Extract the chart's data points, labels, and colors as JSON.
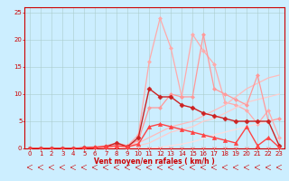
{
  "xlabel": "Vent moyen/en rafales ( km/h )",
  "xlabel_color": "#cc0000",
  "background_color": "#cceeff",
  "grid_color": "#aacccc",
  "xlim": [
    -0.5,
    23.5
  ],
  "ylim": [
    0,
    26
  ],
  "yticks": [
    0,
    5,
    10,
    15,
    20,
    25
  ],
  "xticks": [
    0,
    1,
    2,
    3,
    4,
    5,
    6,
    7,
    8,
    9,
    10,
    11,
    12,
    13,
    14,
    15,
    16,
    17,
    18,
    19,
    20,
    21,
    22,
    23
  ],
  "series": [
    {
      "x": [
        0,
        1,
        2,
        3,
        4,
        5,
        6,
        7,
        8,
        9,
        10,
        11,
        12,
        13,
        14,
        15,
        16,
        17,
        18,
        19,
        20,
        21,
        22,
        23
      ],
      "y": [
        0,
        0,
        0,
        0,
        0,
        0.1,
        0.2,
        0.3,
        0.5,
        0.5,
        2.5,
        16.0,
        24.0,
        18.5,
        9.5,
        21.0,
        18.0,
        15.5,
        8.5,
        8.0,
        7.0,
        4.5,
        7.0,
        2.0
      ],
      "color": "#ffaaaa",
      "lw": 0.9,
      "marker": "D",
      "ms": 2.0,
      "zorder": 2
    },
    {
      "x": [
        0,
        1,
        2,
        3,
        4,
        5,
        6,
        7,
        8,
        9,
        10,
        11,
        12,
        13,
        14,
        15,
        16,
        17,
        18,
        19,
        20,
        21,
        22,
        23
      ],
      "y": [
        0,
        0,
        0,
        0,
        0,
        0.2,
        0.3,
        0.5,
        1.0,
        0.5,
        1.5,
        7.5,
        7.5,
        10.0,
        9.5,
        9.5,
        21.0,
        11.0,
        10.0,
        9.0,
        8.0,
        13.5,
        5.0,
        5.5
      ],
      "color": "#ff9999",
      "lw": 0.9,
      "marker": "D",
      "ms": 2.0,
      "zorder": 3
    },
    {
      "x": [
        0,
        1,
        2,
        3,
        4,
        5,
        6,
        7,
        8,
        9,
        10,
        11,
        12,
        13,
        14,
        15,
        16,
        17,
        18,
        19,
        20,
        21,
        22,
        23
      ],
      "y": [
        0,
        0,
        0,
        0,
        0,
        0,
        0,
        0,
        0.5,
        0.5,
        1.0,
        2.0,
        3.0,
        4.0,
        4.5,
        5.0,
        6.0,
        7.0,
        8.0,
        9.5,
        11.0,
        12.0,
        13.0,
        13.5
      ],
      "color": "#ffbbbb",
      "lw": 0.9,
      "marker": null,
      "ms": 0,
      "zorder": 2
    },
    {
      "x": [
        0,
        1,
        2,
        3,
        4,
        5,
        6,
        7,
        8,
        9,
        10,
        11,
        12,
        13,
        14,
        15,
        16,
        17,
        18,
        19,
        20,
        21,
        22,
        23
      ],
      "y": [
        0,
        0,
        0,
        0,
        0,
        0,
        0,
        0,
        0.2,
        0.3,
        0.5,
        1.0,
        2.0,
        3.0,
        3.5,
        4.0,
        5.0,
        5.5,
        6.5,
        7.5,
        8.5,
        9.0,
        9.5,
        10.0
      ],
      "color": "#ffcccc",
      "lw": 0.9,
      "marker": null,
      "ms": 0,
      "zorder": 2
    },
    {
      "x": [
        0,
        1,
        2,
        3,
        4,
        5,
        6,
        7,
        8,
        9,
        10,
        11,
        12,
        13,
        14,
        15,
        16,
        17,
        18,
        19,
        20,
        21,
        22,
        23
      ],
      "y": [
        0,
        0,
        0,
        0,
        0,
        0,
        0,
        0,
        0,
        0,
        0,
        0,
        0.2,
        0.5,
        0.8,
        1.2,
        1.8,
        2.5,
        3.0,
        3.5,
        4.0,
        4.5,
        5.0,
        5.5
      ],
      "color": "#ffdddd",
      "lw": 0.9,
      "marker": null,
      "ms": 0,
      "zorder": 2
    },
    {
      "x": [
        0,
        1,
        2,
        3,
        4,
        5,
        6,
        7,
        8,
        9,
        10,
        11,
        12,
        13,
        14,
        15,
        16,
        17,
        18,
        19,
        20,
        21,
        22,
        23
      ],
      "y": [
        0,
        0,
        0,
        0,
        0,
        0.1,
        0.2,
        0.3,
        1.0,
        0.3,
        2.0,
        11.0,
        9.5,
        9.5,
        8.0,
        7.5,
        6.5,
        6.0,
        5.5,
        5.0,
        5.0,
        5.0,
        5.0,
        0.5
      ],
      "color": "#cc2222",
      "lw": 1.0,
      "marker": "D",
      "ms": 2.5,
      "zorder": 4
    },
    {
      "x": [
        0,
        1,
        2,
        3,
        4,
        5,
        6,
        7,
        8,
        9,
        10,
        11,
        12,
        13,
        14,
        15,
        16,
        17,
        18,
        19,
        20,
        21,
        22,
        23
      ],
      "y": [
        0,
        0,
        0,
        0,
        0,
        0.1,
        0.2,
        0.3,
        0.5,
        0.3,
        0.8,
        4.0,
        4.5,
        4.0,
        3.5,
        3.0,
        2.5,
        2.0,
        1.5,
        1.0,
        4.0,
        0.5,
        2.0,
        0.2
      ],
      "color": "#ff4444",
      "lw": 1.0,
      "marker": "^",
      "ms": 3,
      "zorder": 5
    },
    {
      "x": [
        0,
        1,
        2,
        3,
        4,
        5,
        6,
        7,
        8,
        9,
        10,
        11,
        12,
        13,
        14,
        15,
        16,
        17,
        18,
        19,
        20,
        21,
        22,
        23
      ],
      "y": [
        0,
        0,
        0,
        0,
        0,
        0,
        0,
        0,
        0,
        0,
        0,
        0,
        0,
        0,
        0,
        0,
        0,
        0,
        0,
        0,
        0,
        0,
        0,
        0
      ],
      "color": "#ff6666",
      "lw": 0.8,
      "marker": "x",
      "ms": 2.5,
      "zorder": 3
    }
  ]
}
